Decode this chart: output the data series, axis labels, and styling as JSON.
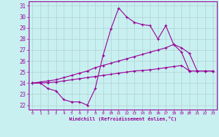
{
  "bg_color": "#c8f0f0",
  "grid_color": "#b0d0d0",
  "line_color": "#990099",
  "xlabel": "Windchill (Refroidissement éolien,°C)",
  "xlim": [
    -0.5,
    23.5
  ],
  "ylim": [
    21.6,
    31.4
  ],
  "xticks": [
    0,
    1,
    2,
    3,
    4,
    5,
    6,
    7,
    8,
    9,
    10,
    11,
    12,
    13,
    14,
    15,
    16,
    17,
    18,
    19,
    20,
    21,
    22,
    23
  ],
  "yticks": [
    22,
    23,
    24,
    25,
    26,
    27,
    28,
    29,
    30,
    31
  ],
  "series": [
    {
      "x": [
        0,
        1,
        2,
        3,
        4,
        5,
        6,
        7,
        8,
        9,
        10,
        11,
        12,
        13,
        14,
        15,
        16,
        17,
        18,
        19,
        20,
        21,
        22,
        23
      ],
      "y": [
        24.0,
        24.0,
        23.5,
        23.3,
        22.5,
        22.3,
        22.3,
        22.0,
        23.5,
        26.5,
        28.9,
        30.8,
        30.0,
        29.5,
        29.3,
        29.2,
        28.0,
        29.2,
        27.5,
        26.8,
        25.1,
        25.1,
        25.1,
        25.1
      ]
    },
    {
      "x": [
        0,
        1,
        2,
        3,
        4,
        5,
        6,
        7,
        8,
        9,
        10,
        11,
        12,
        13,
        14,
        15,
        16,
        17,
        18,
        19,
        20,
        21,
        22,
        23
      ],
      "y": [
        24.0,
        24.1,
        24.2,
        24.3,
        24.5,
        24.7,
        24.9,
        25.1,
        25.4,
        25.6,
        25.8,
        26.0,
        26.2,
        26.4,
        26.6,
        26.8,
        27.0,
        27.2,
        27.5,
        27.2,
        26.7,
        25.1,
        25.1,
        25.1
      ]
    },
    {
      "x": [
        0,
        1,
        2,
        3,
        4,
        5,
        6,
        7,
        8,
        9,
        10,
        11,
        12,
        13,
        14,
        15,
        16,
        17,
        18,
        19,
        20,
        21,
        22,
        23
      ],
      "y": [
        24.0,
        24.0,
        24.05,
        24.1,
        24.2,
        24.3,
        24.4,
        24.5,
        24.6,
        24.7,
        24.8,
        24.9,
        25.0,
        25.1,
        25.15,
        25.2,
        25.3,
        25.4,
        25.5,
        25.6,
        25.1,
        25.1,
        25.1,
        25.1
      ]
    }
  ]
}
